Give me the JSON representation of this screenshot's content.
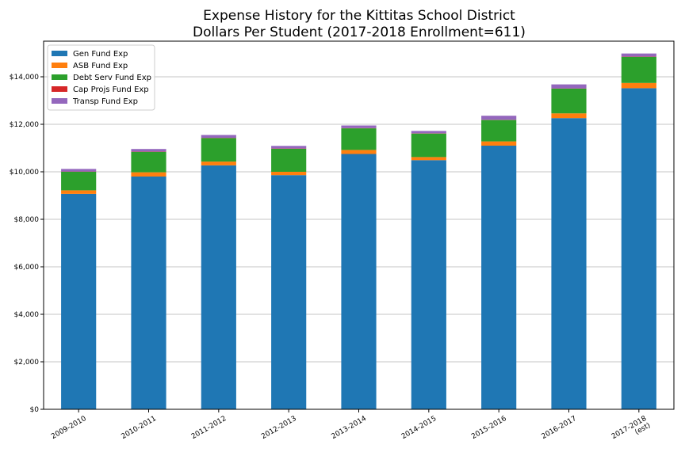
{
  "chart_data": {
    "type": "bar",
    "stacked": true,
    "title": [
      "Expense History for the Kittitas School District",
      "Dollars Per Student (2017-2018 Enrollment=611)"
    ],
    "xlabel": "",
    "ylabel": "",
    "categories": [
      [
        "2009-2010"
      ],
      [
        "2010-2011"
      ],
      [
        "2011-2012"
      ],
      [
        "2012-2013"
      ],
      [
        "2013-2014"
      ],
      [
        "2014-2015"
      ],
      [
        "2015-2016"
      ],
      [
        "2016-2017"
      ],
      [
        "2017-2018",
        "(est)"
      ]
    ],
    "series": [
      {
        "name": "Gen Fund Exp",
        "color": "#1f77b4",
        "values": [
          9070,
          9800,
          10270,
          9860,
          10750,
          10490,
          11100,
          12260,
          13520
        ]
      },
      {
        "name": "ASB Fund Exp",
        "color": "#ff7f0e",
        "values": [
          150,
          180,
          160,
          140,
          170,
          130,
          180,
          200,
          220
        ]
      },
      {
        "name": "Debt Serv Fund Exp",
        "color": "#2ca02c",
        "values": [
          780,
          860,
          990,
          970,
          910,
          990,
          900,
          1040,
          1100
        ]
      },
      {
        "name": "Cap Projs Fund Exp",
        "color": "#d62728",
        "values": [
          10,
          10,
          10,
          10,
          10,
          10,
          10,
          10,
          10
        ]
      },
      {
        "name": "Transp Fund Exp",
        "color": "#9467bd",
        "values": [
          110,
          110,
          120,
          110,
          110,
          100,
          170,
          170,
          130
        ]
      }
    ],
    "ylim": [
      0,
      15500
    ],
    "yticks": [
      0,
      2000,
      4000,
      6000,
      8000,
      10000,
      12000,
      14000
    ],
    "ytick_labels": [
      "$0",
      "$2,000",
      "$4,000",
      "$6,000",
      "$8,000",
      "$10,000",
      "$12,000",
      "$14,000"
    ],
    "grid": "horizontal",
    "legend_position": "top-left"
  }
}
